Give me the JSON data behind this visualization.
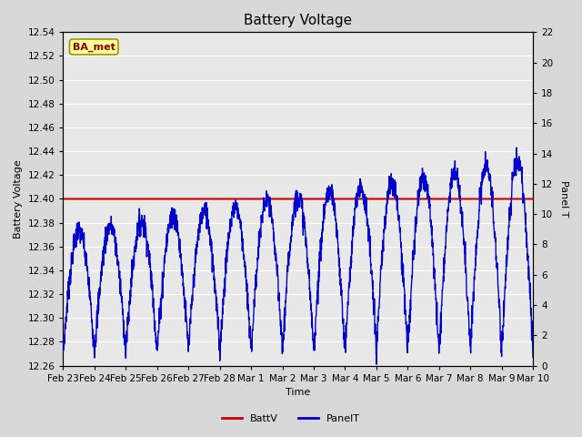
{
  "title": "Battery Voltage",
  "xlabel": "Time",
  "ylabel_left": "Battery Voltage",
  "ylabel_right": "Panel T",
  "ylim_left": [
    12.26,
    12.54
  ],
  "ylim_right": [
    0,
    22
  ],
  "yticks_left": [
    12.26,
    12.28,
    12.3,
    12.32,
    12.34,
    12.36,
    12.38,
    12.4,
    12.42,
    12.44,
    12.46,
    12.48,
    12.5,
    12.52,
    12.54
  ],
  "yticks_right": [
    0,
    2,
    4,
    6,
    8,
    10,
    12,
    14,
    16,
    18,
    20,
    22
  ],
  "xtick_labels": [
    "Feb 23",
    "Feb 24",
    "Feb 25",
    "Feb 26",
    "Feb 27",
    "Feb 28",
    "Mar 1",
    "Mar 2",
    "Mar 3",
    "Mar 4",
    "Mar 5",
    "Mar 6",
    "Mar 7",
    "Mar 8",
    "Mar 9",
    "Mar 10"
  ],
  "battv_value": 12.4,
  "battv_color": "#cc0000",
  "panelt_color": "#0000cc",
  "background_color": "#d8d8d8",
  "plot_bg_color": "#e8e8e8",
  "grid_color": "#ffffff",
  "annotation_text": "BA_met",
  "annotation_bg": "#ffff99",
  "annotation_border": "#999900",
  "annotation_fg": "#880000",
  "title_fontsize": 11,
  "label_fontsize": 8,
  "tick_fontsize": 7.5
}
